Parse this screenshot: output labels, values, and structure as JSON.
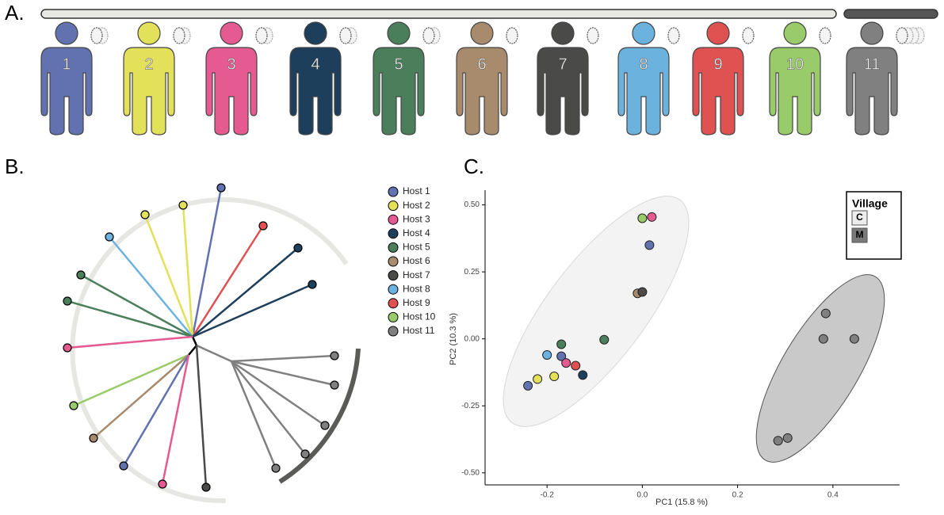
{
  "panel_labels": [
    "A.",
    "B.",
    "C."
  ],
  "hosts": [
    "1",
    "2",
    "3",
    "4",
    "5",
    "6",
    "7",
    "8",
    "9",
    "10",
    "11"
  ],
  "chart_data": {
    "type": "scatter",
    "xlabel": "PC1 (15.8 %)",
    "ylabel": "PC2  (10.3 %)",
    "xlim": [
      -0.33,
      0.54
    ],
    "ylim": [
      -0.545,
      0.555
    ],
    "xticks": [
      -0.2,
      {
        "value": 0,
        "label": "0.0"
      },
      0.2,
      0.4
    ],
    "yticks": [
      {
        "value": 0.5,
        "label": "0.50"
      },
      0.25,
      {
        "value": 0,
        "label": "0.00"
      },
      -0.25,
      {
        "value": -0.5,
        "label": "-0.50"
      }
    ],
    "series": [
      {
        "name": "Host 1",
        "color": "#6272b0",
        "x": [
          0.015,
          -0.17,
          -0.24
        ],
        "y": [
          0.35,
          -0.065,
          -0.175
        ]
      },
      {
        "name": "Host 2",
        "color": "#e3e05a",
        "x": [
          -0.22,
          -0.185
        ],
        "y": [
          -0.15,
          -0.14
        ]
      },
      {
        "name": "Host 3",
        "color": "#e55a91",
        "x": [
          0.02,
          -0.16
        ],
        "y": [
          0.455,
          -0.09
        ]
      },
      {
        "name": "Host 4",
        "color": "#1e3f5c",
        "x": [
          -0.125
        ],
        "y": [
          -0.135
        ]
      },
      {
        "name": "Host 5",
        "color": "#4b7f5c",
        "x": [
          -0.08,
          -0.17
        ],
        "y": [
          -0.003,
          -0.02
        ]
      },
      {
        "name": "Host 6",
        "color": "#a88a6c",
        "x": [
          -0.01
        ],
        "y": [
          0.17
        ]
      },
      {
        "name": "Host 7",
        "color": "#4a4a48",
        "x": [
          0.0
        ],
        "y": [
          0.175
        ]
      },
      {
        "name": "Host 8",
        "color": "#6cb2de",
        "x": [
          -0.2
        ],
        "y": [
          -0.06
        ]
      },
      {
        "name": "Host 9",
        "color": "#e05252",
        "x": [
          -0.14
        ],
        "y": [
          -0.1
        ]
      },
      {
        "name": "Host 10",
        "color": "#9acb6b",
        "x": [
          0.0
        ],
        "y": [
          0.45
        ]
      },
      {
        "name": "Host 11",
        "color": "#808080",
        "x": [
          0.385,
          0.38,
          0.445,
          0.285,
          0.305
        ],
        "y": [
          0.095,
          0.0,
          0.0,
          -0.38,
          -0.37
        ]
      }
    ],
    "legend": {
      "title": "Village",
      "items": [
        {
          "name": "C",
          "color": "#ededed"
        },
        {
          "name": "M",
          "color": "#7a7a7a"
        }
      ]
    }
  }
}
